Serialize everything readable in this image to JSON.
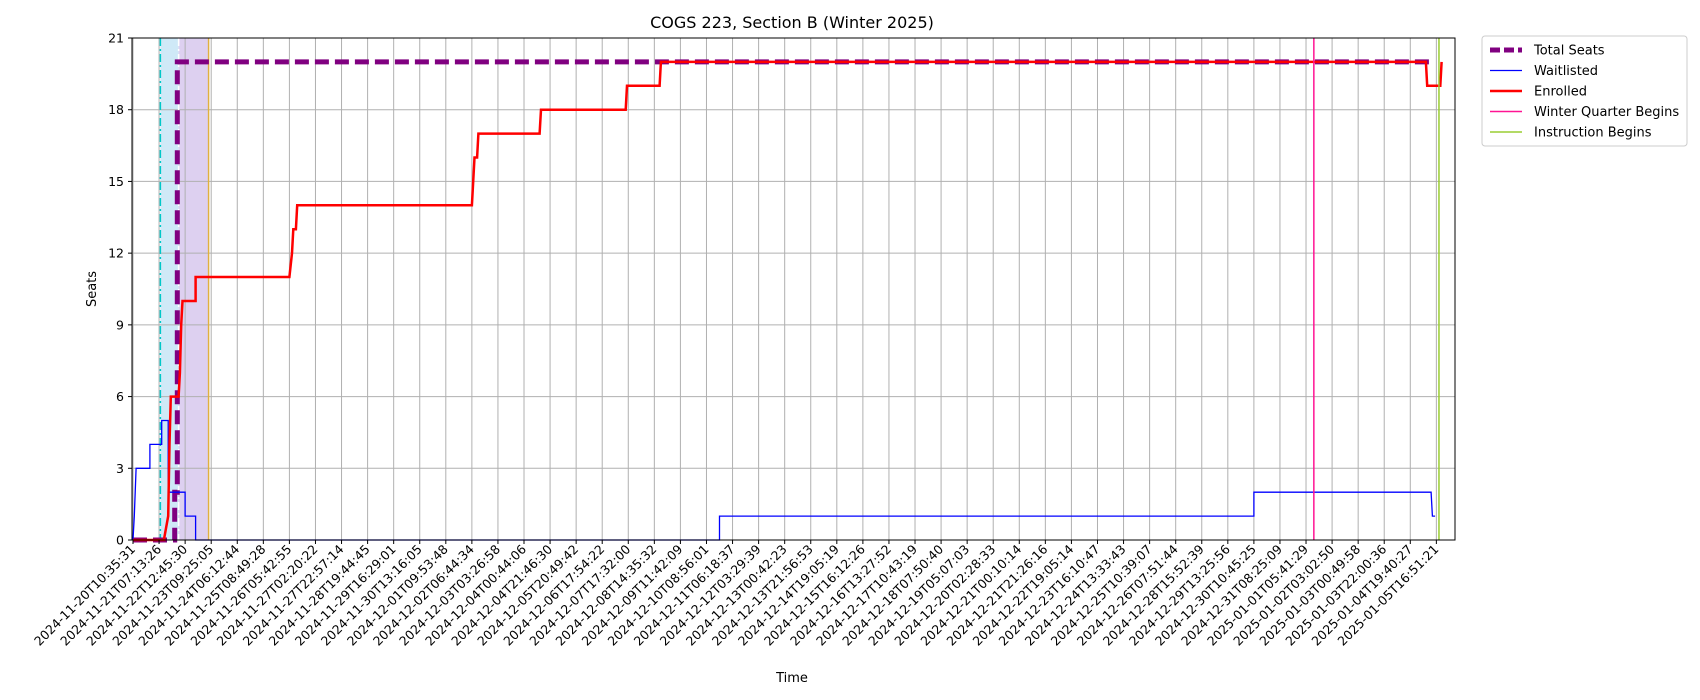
{
  "chart_data": {
    "type": "line",
    "title": "COGS 223, Section B (Winter 2025)",
    "xlabel": "Time",
    "ylabel": "Seats",
    "xlim": [
      "2024-11-20T10:35:31",
      "2025-01-06T23:00:00"
    ],
    "ylim": [
      0,
      21
    ],
    "yticks": [
      0,
      3,
      6,
      9,
      12,
      15,
      18,
      21
    ],
    "xtick_labels": [
      "2024-11-20T10:35:31",
      "2024-11-21T07:13:26",
      "2024-11-22T12:45:30",
      "2024-11-23T09:25:05",
      "2024-11-24T06:12:44",
      "2024-11-25T08:49:28",
      "2024-11-26T05:42:55",
      "2024-11-27T02:20:22",
      "2024-11-27T22:57:14",
      "2024-11-28T19:44:45",
      "2024-11-29T16:29:01",
      "2024-11-30T13:16:05",
      "2024-12-01T09:53:48",
      "2024-12-02T06:44:34",
      "2024-12-03T03:26:58",
      "2024-12-04T00:44:06",
      "2024-12-04T21:46:30",
      "2024-12-05T20:49:42",
      "2024-12-06T17:54:22",
      "2024-12-07T17:32:00",
      "2024-12-08T14:35:32",
      "2024-12-09T11:42:09",
      "2024-12-10T08:56:01",
      "2024-12-11T06:18:37",
      "2024-12-12T03:29:39",
      "2024-12-13T00:42:23",
      "2024-12-13T21:56:53",
      "2024-12-14T19:05:19",
      "2024-12-15T16:12:26",
      "2024-12-16T13:27:52",
      "2024-12-17T10:43:19",
      "2024-12-18T07:50:40",
      "2024-12-19T05:07:03",
      "2024-12-20T02:28:33",
      "2024-12-21T00:10:14",
      "2024-12-21T21:26:16",
      "2024-12-22T19:05:14",
      "2024-12-23T16:10:47",
      "2024-12-24T13:33:43",
      "2024-12-25T10:39:07",
      "2024-12-26T07:51:44",
      "2024-12-28T15:52:39",
      "2024-12-29T13:25:56",
      "2024-12-30T10:45:25",
      "2024-12-31T08:25:09",
      "2025-01-01T05:41:29",
      "2025-01-02T03:02:50",
      "2025-01-03T00:49:58",
      "2025-01-03T22:00:36",
      "2025-01-04T19:40:27",
      "2025-01-05T16:51:21"
    ],
    "grid": true,
    "legend_position": "outside-top-right",
    "series": [
      {
        "name": "Total Seats",
        "color": "#800080",
        "style": "dashed",
        "points": [
          [
            0,
            0
          ],
          [
            1.6,
            0
          ],
          [
            1.6,
            2
          ],
          [
            1.7,
            2
          ],
          [
            1.7,
            20
          ],
          [
            49.9,
            20
          ]
        ]
      },
      {
        "name": "Waitlisted",
        "color": "#0000ff",
        "style": "solid",
        "points": [
          [
            0,
            0
          ],
          [
            0.05,
            1
          ],
          [
            0.12,
            3
          ],
          [
            0.65,
            3
          ],
          [
            0.65,
            4
          ],
          [
            1.1,
            4
          ],
          [
            1.1,
            5
          ],
          [
            1.35,
            5
          ],
          [
            1.35,
            2
          ],
          [
            2.0,
            2
          ],
          [
            2.0,
            1
          ],
          [
            2.4,
            1
          ],
          [
            2.4,
            0
          ],
          [
            22.5,
            0
          ],
          [
            22.5,
            1
          ],
          [
            43.0,
            1
          ],
          [
            43.0,
            2
          ],
          [
            49.8,
            2
          ],
          [
            49.85,
            1
          ],
          [
            49.95,
            1
          ]
        ]
      },
      {
        "name": "Enrolled",
        "color": "#ff0000",
        "style": "solid",
        "points": [
          [
            0,
            0
          ],
          [
            1.2,
            0
          ],
          [
            1.2,
            0.1
          ],
          [
            1.35,
            1
          ],
          [
            1.4,
            4
          ],
          [
            1.45,
            6
          ],
          [
            1.75,
            6
          ],
          [
            1.8,
            7
          ],
          [
            1.85,
            9
          ],
          [
            1.9,
            10
          ],
          [
            2.4,
            10
          ],
          [
            2.4,
            11
          ],
          [
            6.0,
            11
          ],
          [
            6.1,
            12
          ],
          [
            6.15,
            13
          ],
          [
            6.25,
            13
          ],
          [
            6.3,
            14
          ],
          [
            13.0,
            14
          ],
          [
            13.05,
            15
          ],
          [
            13.1,
            16
          ],
          [
            13.2,
            16
          ],
          [
            13.25,
            17
          ],
          [
            15.6,
            17
          ],
          [
            15.65,
            18
          ],
          [
            18.9,
            18
          ],
          [
            18.95,
            19
          ],
          [
            20.2,
            19
          ],
          [
            20.25,
            20
          ],
          [
            49.6,
            20
          ],
          [
            49.65,
            19
          ],
          [
            50.15,
            19
          ],
          [
            50.2,
            20
          ]
        ]
      },
      {
        "name": "Winter Quarter Begins",
        "color": "#ff1493",
        "style": "vline",
        "x": 45.3
      },
      {
        "name": "Instruction Begins",
        "color": "#9acd32",
        "style": "vline",
        "x": 50.1
      }
    ],
    "bands": [
      {
        "from": 1.05,
        "to": 1.75,
        "color": "#cfe9f7"
      },
      {
        "from": 1.75,
        "to": 2.9,
        "color": "#ddd0f0"
      }
    ],
    "marker_lines": [
      {
        "x": 1.05,
        "color": "#00c8c8",
        "style": "dashdot"
      },
      {
        "x": 1.75,
        "color": "#ffffff",
        "style": "dashdot"
      },
      {
        "x": 2.9,
        "color": "#e0b040",
        "style": "solid"
      }
    ]
  }
}
